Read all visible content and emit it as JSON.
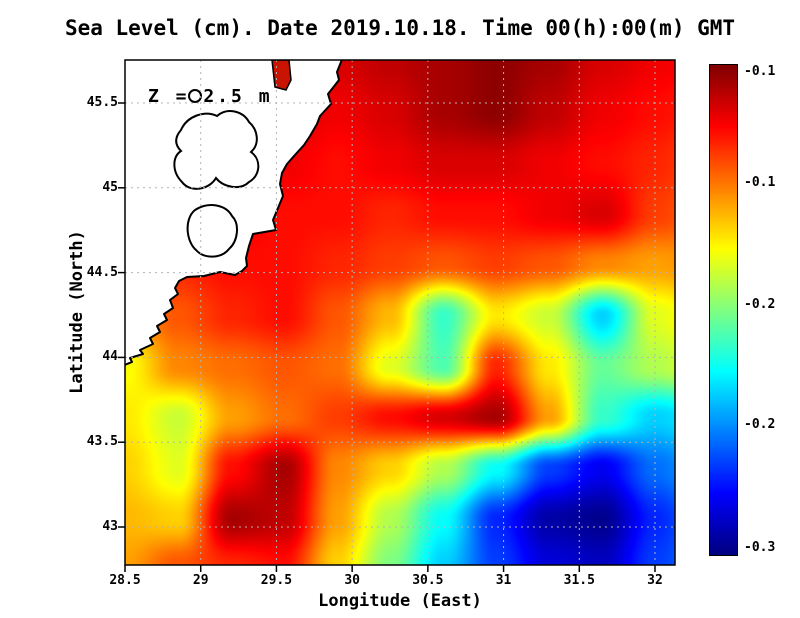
{
  "title": "Sea Level (cm). Date 2019.10.18. Time 00(h):00(m) GMT",
  "annotation": "Z = 2.5 m",
  "axes": {
    "x_label": "Longitude (East)",
    "y_label": "Latitude (North)",
    "x_ticks": [
      28.5,
      29,
      29.5,
      30,
      30.5,
      31,
      31.5,
      32
    ],
    "x_tick_labels": [
      "28.5",
      "29",
      "29.5",
      "30",
      "30.5",
      "31",
      "31.5",
      "32"
    ],
    "y_ticks": [
      43,
      43.5,
      44,
      44.5,
      45,
      45.5
    ],
    "y_tick_labels": [
      "43",
      "43.5",
      "44",
      "44.5",
      "45",
      "45.5"
    ]
  },
  "colorbar": {
    "tick_labels": [
      "-0.1",
      "-0.1",
      "-0.2",
      "-0.2",
      "-0.3"
    ],
    "tick_fractions_from_top": [
      0.014,
      0.241,
      0.49,
      0.735,
      0.986
    ]
  },
  "colors": {
    "background": "#ffffff",
    "land": "#ffffff",
    "coastline": "#000000",
    "grid": "#b4b4b4",
    "delta_bay": "#c81400"
  },
  "chart_data": {
    "type": "heatmap",
    "title": "Sea Level (cm). Date 2019.10.18. Time 00(h):00(m) GMT",
    "xlabel": "Longitude (East)",
    "ylabel": "Latitude (North)",
    "xlim": [
      28.5,
      32.13
    ],
    "ylim": [
      42.78,
      45.75
    ],
    "grid": "dashed",
    "legend_position": "right-colorbar",
    "colormap": "jet",
    "value_range": [
      -0.303,
      -0.097
    ],
    "grid_lons": [
      28.5,
      28.85,
      29.2,
      29.55,
      29.9,
      30.25,
      30.6,
      30.95,
      31.3,
      31.65,
      32.0,
      32.35
    ],
    "grid_lats": [
      45.75,
      45.45,
      45.15,
      44.85,
      44.55,
      44.25,
      43.95,
      43.65,
      43.35,
      43.05,
      42.78
    ],
    "values": [
      [
        -0.12,
        -0.12,
        -0.115,
        -0.105,
        -0.115,
        -0.11,
        -0.105,
        -0.1,
        -0.105,
        -0.115,
        -0.12,
        -0.125
      ],
      [
        -0.12,
        -0.12,
        -0.12,
        -0.115,
        -0.12,
        -0.115,
        -0.105,
        -0.1,
        -0.11,
        -0.12,
        -0.125,
        -0.13
      ],
      [
        -0.12,
        -0.12,
        -0.12,
        -0.12,
        -0.125,
        -0.12,
        -0.115,
        -0.115,
        -0.12,
        -0.125,
        -0.13,
        -0.14
      ],
      [
        -0.12,
        -0.12,
        -0.12,
        -0.125,
        -0.125,
        -0.13,
        -0.125,
        -0.125,
        -0.12,
        -0.115,
        -0.135,
        -0.145
      ],
      [
        -0.13,
        -0.13,
        -0.125,
        -0.125,
        -0.13,
        -0.135,
        -0.14,
        -0.135,
        -0.14,
        -0.15,
        -0.155,
        -0.15
      ],
      [
        -0.155,
        -0.14,
        -0.13,
        -0.125,
        -0.14,
        -0.16,
        -0.215,
        -0.17,
        -0.185,
        -0.235,
        -0.18,
        -0.165
      ],
      [
        -0.175,
        -0.15,
        -0.145,
        -0.14,
        -0.145,
        -0.18,
        -0.21,
        -0.13,
        -0.17,
        -0.205,
        -0.19,
        -0.175
      ],
      [
        -0.17,
        -0.185,
        -0.155,
        -0.145,
        -0.135,
        -0.125,
        -0.115,
        -0.105,
        -0.155,
        -0.215,
        -0.235,
        -0.225
      ],
      [
        -0.165,
        -0.18,
        -0.125,
        -0.105,
        -0.15,
        -0.165,
        -0.19,
        -0.225,
        -0.265,
        -0.28,
        -0.255,
        -0.24
      ],
      [
        -0.16,
        -0.165,
        -0.105,
        -0.11,
        -0.155,
        -0.19,
        -0.225,
        -0.27,
        -0.295,
        -0.3,
        -0.27,
        -0.25
      ],
      [
        -0.155,
        -0.14,
        -0.13,
        -0.125,
        -0.165,
        -0.2,
        -0.235,
        -0.265,
        -0.285,
        -0.29,
        -0.265,
        -0.25
      ]
    ]
  }
}
